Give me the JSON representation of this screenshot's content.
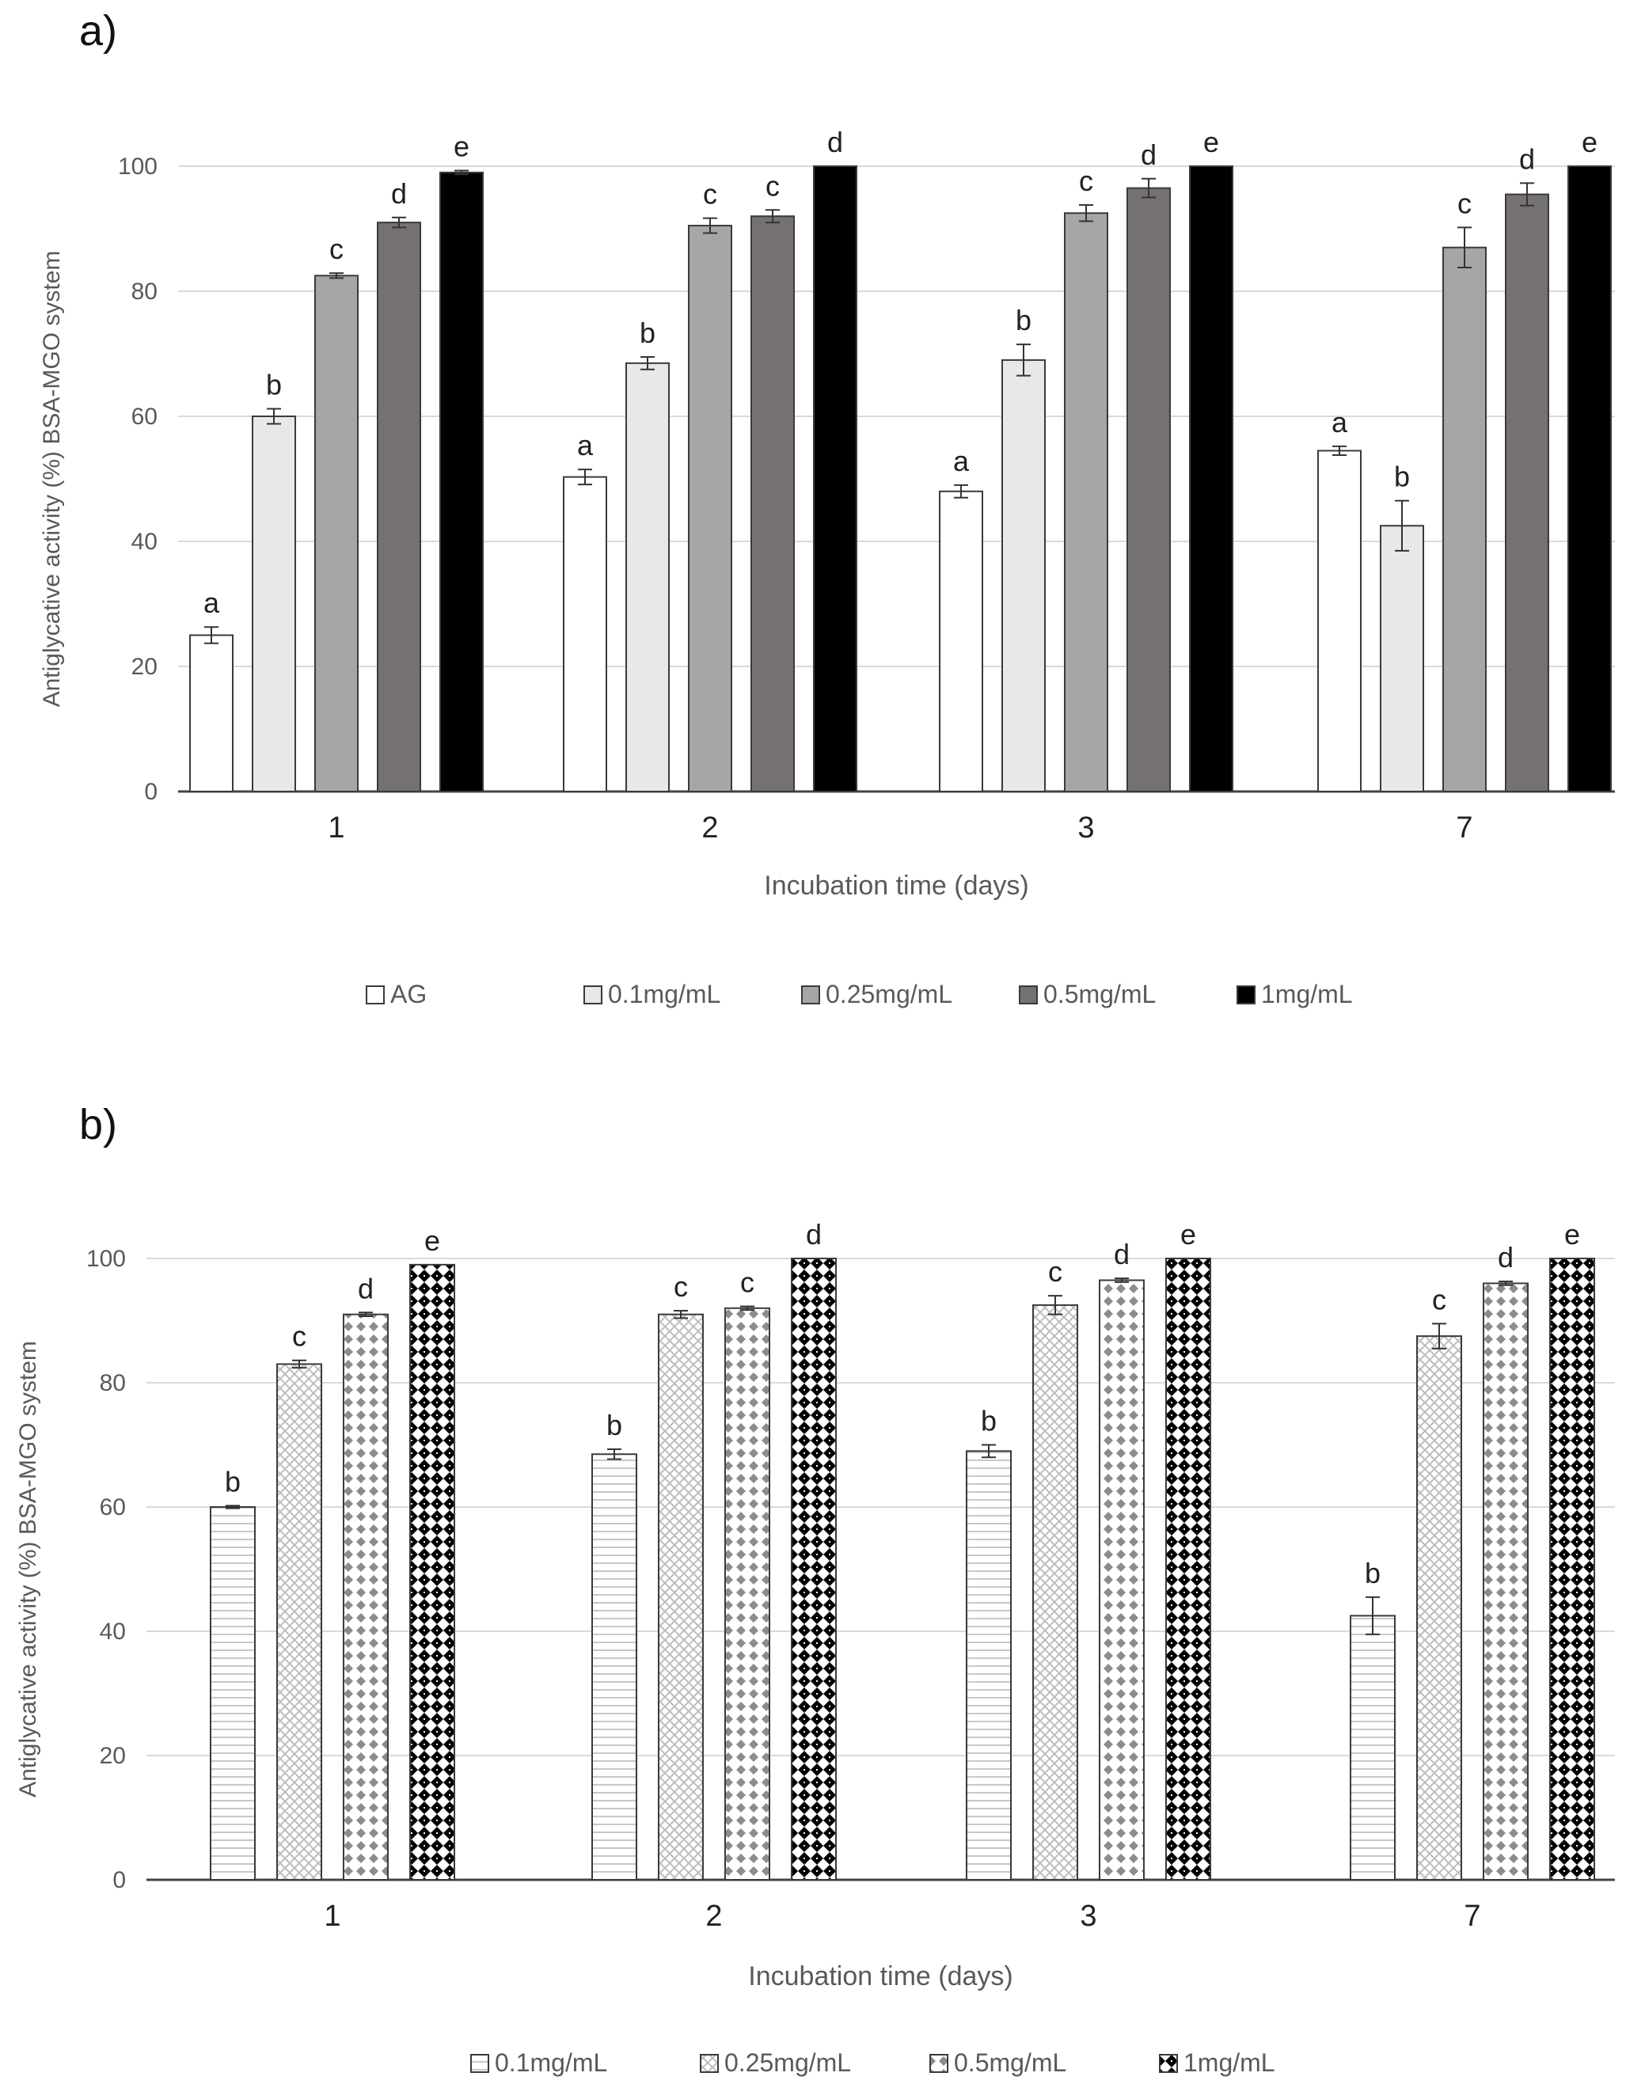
{
  "figure": {
    "panels": [
      "a)",
      "b)"
    ]
  },
  "colors": {
    "grid": "#d9d9d9",
    "axis": "#444444",
    "text": "#595959",
    "sig": "#222222",
    "series_a": [
      "#ffffff",
      "#e8e8e8",
      "#a6a6a6",
      "#767171",
      "#000000"
    ],
    "series_b_fg": [
      "#c8c8c8",
      "#bdbdbd",
      "#8c8c8c",
      "#000000"
    ]
  },
  "chart_data": [
    {
      "type": "bar",
      "panel": "a)",
      "categories": [
        "1",
        "2",
        "3",
        "7"
      ],
      "xlabel": "Incubation time (days)",
      "ylabel": "Antiglycative activity (%) BSA-MGO system",
      "ylim": [
        0,
        100
      ],
      "yticks": [
        0,
        20,
        40,
        60,
        80,
        100
      ],
      "grid": true,
      "legend_position": "bottom",
      "series": [
        {
          "name": "AG",
          "values": [
            25,
            50.3,
            48,
            54.5
          ],
          "errors": [
            1.3,
            1.2,
            1,
            0.7
          ],
          "letters": [
            "a",
            "a",
            "a",
            "a"
          ]
        },
        {
          "name": "0.1mg/mL",
          "values": [
            60,
            68.5,
            69,
            42.5
          ],
          "errors": [
            1.2,
            1,
            2.5,
            4
          ],
          "letters": [
            "b",
            "b",
            "b",
            "b"
          ]
        },
        {
          "name": "0.25mg/mL",
          "values": [
            82.5,
            90.5,
            92.5,
            87
          ],
          "errors": [
            0.4,
            1.2,
            1.3,
            3.2
          ],
          "letters": [
            "c",
            "c",
            "c",
            "c"
          ]
        },
        {
          "name": "0.5mg/mL",
          "values": [
            91,
            92,
            96.5,
            95.5
          ],
          "errors": [
            0.8,
            1,
            1.5,
            1.8
          ],
          "letters": [
            "d",
            "c",
            "d",
            "d"
          ]
        },
        {
          "name": "1mg/mL",
          "values": [
            99,
            100,
            100,
            100
          ],
          "errors": [
            0.3,
            0,
            0,
            0
          ],
          "letters": [
            "e",
            "d",
            "e",
            "e"
          ]
        }
      ]
    },
    {
      "type": "bar",
      "panel": "b)",
      "categories": [
        "1",
        "2",
        "3",
        "7"
      ],
      "xlabel": "Incubation time (days)",
      "ylabel": "Antiglycative activity (%) BSA-MGO system",
      "ylim": [
        0,
        100
      ],
      "yticks": [
        0,
        20,
        40,
        60,
        80,
        100
      ],
      "grid": true,
      "legend_position": "bottom",
      "series": [
        {
          "name": "0.1mg/mL",
          "values": [
            60,
            68.5,
            69,
            42.5
          ],
          "errors": [
            0.2,
            0.8,
            1,
            3
          ],
          "letters": [
            "b",
            "b",
            "b",
            "b"
          ]
        },
        {
          "name": "0.25mg/mL",
          "values": [
            83,
            91,
            92.5,
            87.5
          ],
          "errors": [
            0.6,
            0.6,
            1.5,
            2
          ],
          "letters": [
            "c",
            "c",
            "c",
            "c"
          ]
        },
        {
          "name": "0.5mg/mL",
          "values": [
            91,
            92,
            96.5,
            96
          ],
          "errors": [
            0.3,
            0.3,
            0.3,
            0.3
          ],
          "letters": [
            "d",
            "c",
            "d",
            "d"
          ]
        },
        {
          "name": "1mg/mL",
          "values": [
            99,
            100,
            100,
            100
          ],
          "errors": [
            0,
            0,
            0,
            0
          ],
          "letters": [
            "e",
            "d",
            "e",
            "e"
          ]
        }
      ]
    }
  ]
}
